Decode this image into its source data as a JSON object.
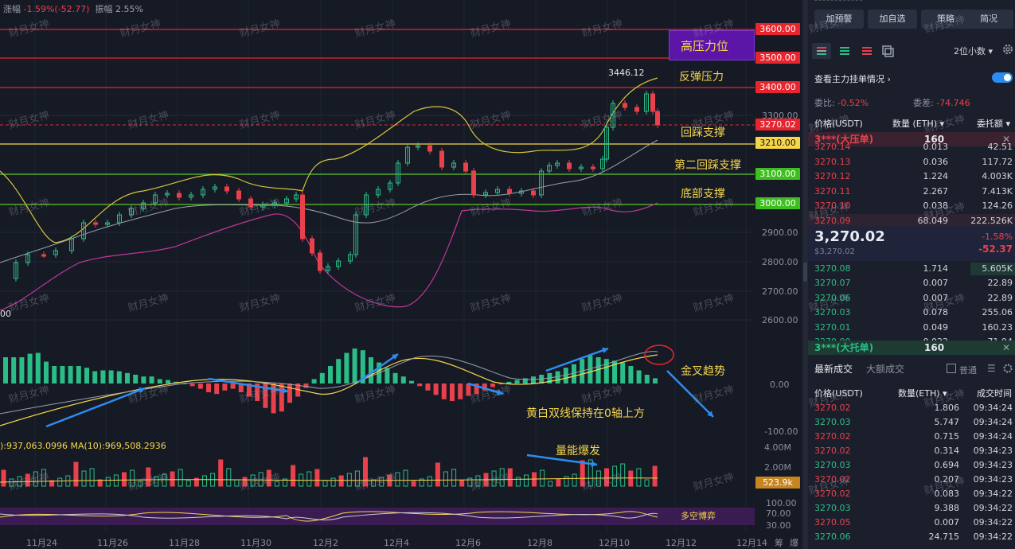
{
  "top_info": {
    "amp_label": "涨幅",
    "amp_value": "-1.59%(-52.77)",
    "swing_label": "振幅",
    "swing_value": "2.55%"
  },
  "price_labels": [
    {
      "text": "3600.00",
      "color": "#e8252f"
    },
    {
      "text": "3500.00",
      "color": "#e8252f"
    },
    {
      "text": "3400.00",
      "color": "#e8252f"
    },
    {
      "text": "3270.02",
      "color": "#e8252f"
    },
    {
      "text": "3210.00",
      "color": "#f5d64b",
      "dark": true
    },
    {
      "text": "3100.00",
      "color": "#3fbf1f"
    },
    {
      "text": "3000.00",
      "color": "#3fbf1f"
    }
  ],
  "price_axis": [
    "3300.00",
    "2900.00",
    "2800.00",
    "2700.00",
    "2600.00"
  ],
  "macd_axis": [
    "0.00",
    "-100.00"
  ],
  "vol_axis": [
    "4.00M",
    "2.00M"
  ],
  "vol_current": "523.9k",
  "osc_axis": [
    "100.00",
    "70.00",
    "30.00"
  ],
  "annotations": {
    "high_resistance": "高压力位",
    "rebound_resistance": "反弹压力",
    "pullback_support": "回踩支撑",
    "second_pullback": "第二回踩支撑",
    "bottom_support": "底部支撑",
    "golden_cross": "金叉趋势",
    "dual_line": "黄白双线保持在0轴上方",
    "volume_burst": "量能爆发",
    "bull_bear": "多空博弈",
    "peak": "3446.12",
    "left_edge_price": "00"
  },
  "ma_text": "):937,063.0996  MA(10):969,508.2936",
  "dates": [
    "11月24",
    "11月26",
    "11月28",
    "11月30",
    "12月2",
    "12月4",
    "12月6",
    "12月8",
    "12月10",
    "12月12",
    "12月14"
  ],
  "dates_extra": [
    "筹",
    "爆"
  ],
  "watermark": "财月女神",
  "panel": {
    "buttons": [
      "加预警",
      "加自选",
      "策略",
      "简况"
    ],
    "decimal_select": "2位小数",
    "main_order_label": "查看主力挂单情况",
    "ratio_label": "委比:",
    "ratio_value": "-0.52%",
    "diff_label": "委差:",
    "diff_value": "-74.746",
    "headers": {
      "price": "价格(USDT)",
      "qty": "数量 (ETH)",
      "amount": "委托额"
    },
    "big_sell": {
      "label": "3***(大压单)",
      "qty": "160"
    },
    "asks": [
      {
        "p": "3270.14",
        "q": "0.013",
        "v": "42.51"
      },
      {
        "p": "3270.13",
        "q": "0.036",
        "v": "117.72"
      },
      {
        "p": "3270.12",
        "q": "1.224",
        "v": "4.003K"
      },
      {
        "p": "3270.11",
        "q": "2.267",
        "v": "7.413K"
      },
      {
        "p": "3270.10",
        "q": "0.038",
        "v": "124.26"
      },
      {
        "p": "3270.09",
        "q": "68.049",
        "v": "222.526K"
      }
    ],
    "last_price": "3,270.02",
    "last_sub": "$3,270.02",
    "change_pct": "-1.58%",
    "change_abs": "-52.37",
    "bids": [
      {
        "p": "3270.08",
        "q": "1.714",
        "v": "5.605K"
      },
      {
        "p": "3270.07",
        "q": "0.007",
        "v": "22.89"
      },
      {
        "p": "3270.06",
        "q": "0.007",
        "v": "22.89"
      },
      {
        "p": "3270.03",
        "q": "0.078",
        "v": "255.06"
      },
      {
        "p": "3270.01",
        "q": "0.049",
        "v": "160.23"
      },
      {
        "p": "3270.00",
        "q": "0.022",
        "v": "71.94"
      }
    ],
    "big_buy": {
      "label": "3***(大托单)",
      "qty": "160"
    },
    "tabs": [
      "最新成交",
      "大额成交"
    ],
    "normal_label": "普通",
    "trade_headers": {
      "price": "价格(USDT)",
      "qty": "数量(ETH)",
      "time": "成交时间"
    },
    "trades": [
      {
        "p": "3270.02",
        "q": "1.806",
        "t": "09:34:24",
        "s": "red"
      },
      {
        "p": "3270.03",
        "q": "5.747",
        "t": "09:34:24",
        "s": "green"
      },
      {
        "p": "3270.02",
        "q": "0.715",
        "t": "09:34:24",
        "s": "red"
      },
      {
        "p": "3270.02",
        "q": "0.314",
        "t": "09:34:23",
        "s": "red"
      },
      {
        "p": "3270.03",
        "q": "0.694",
        "t": "09:34:23",
        "s": "green"
      },
      {
        "p": "3270.02",
        "q": "0.207",
        "t": "09:34:23",
        "s": "red"
      },
      {
        "p": "3270.02",
        "q": "0.083",
        "t": "09:34:22",
        "s": "red"
      },
      {
        "p": "3270.03",
        "q": "9.388",
        "t": "09:34:22",
        "s": "green"
      },
      {
        "p": "3270.05",
        "q": "0.007",
        "t": "09:34:22",
        "s": "red"
      },
      {
        "p": "3270.06",
        "q": "24.715",
        "t": "09:34:22",
        "s": "green"
      }
    ]
  }
}
